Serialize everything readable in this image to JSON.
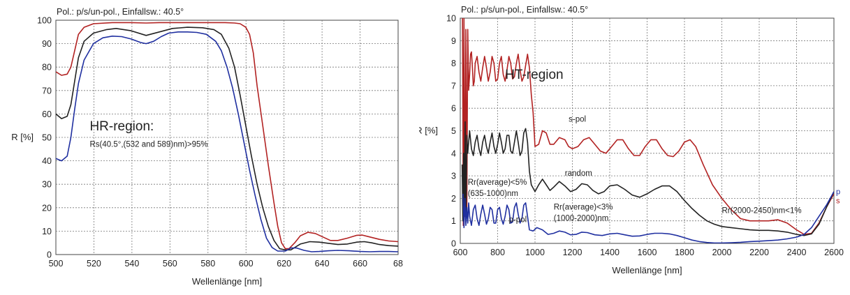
{
  "chart_data": [
    {
      "type": "line",
      "header": "Pol.: p/s/un-pol., Einfallsw.: 40.5°",
      "xlabel": "Wellenlänge [nm]",
      "ylabel": "R [%]",
      "xlim": [
        500,
        682
      ],
      "ylim": [
        0,
        100
      ],
      "xticks": [
        "500",
        "520",
        "540",
        "560",
        "580",
        "600",
        "620",
        "640",
        "660",
        "68"
      ],
      "yticks": [
        "0",
        "10",
        "20",
        "30",
        "40",
        "50",
        "60",
        "70",
        "80",
        "90",
        "100"
      ],
      "grid": true,
      "annotations": [
        {
          "text": "HR-region:",
          "x": 518,
          "y": 53
        },
        {
          "text": "Rs(40.5°,(532 and 589)nm)>95%",
          "x": 518,
          "y": 46
        }
      ],
      "series": [
        {
          "color": "#b22222",
          "x": [
            500,
            503,
            506,
            508,
            510,
            512,
            515,
            520,
            530,
            540,
            548,
            555,
            560,
            570,
            580,
            590,
            595,
            598,
            601,
            603,
            605,
            607,
            610,
            613,
            616,
            618,
            620,
            622,
            624,
            627,
            630,
            634,
            638,
            642,
            646,
            650,
            655,
            660,
            663,
            667,
            672,
            677,
            682
          ],
          "values": [
            78,
            76.5,
            77,
            80,
            87,
            94,
            97,
            98.5,
            99,
            99,
            98.8,
            99,
            99,
            99,
            99,
            99,
            98.8,
            98.5,
            97,
            94,
            86,
            72,
            55,
            38,
            22,
            12,
            5,
            2.5,
            2.5,
            5,
            8,
            9.5,
            9,
            7.5,
            6,
            6,
            7,
            8.2,
            8.3,
            7.5,
            6.5,
            5.8,
            5.5
          ]
        },
        {
          "color": "#222222",
          "x": [
            500,
            503,
            506,
            508,
            510,
            512,
            515,
            520,
            527,
            532,
            540,
            548,
            555,
            562,
            570,
            578,
            584,
            588,
            592,
            595,
            598,
            601,
            604,
            607,
            610,
            613,
            616,
            619,
            622,
            625,
            630,
            635,
            640,
            645,
            650,
            655,
            660,
            664,
            668,
            672,
            677,
            682
          ],
          "values": [
            60,
            58,
            59,
            64,
            74,
            84,
            91,
            94.5,
            96,
            96.5,
            95.5,
            93.5,
            95,
            96.5,
            97,
            96.8,
            96,
            94,
            88,
            80,
            68,
            55,
            42,
            30,
            20,
            12,
            6,
            2.5,
            2,
            2,
            4.5,
            5.5,
            5.3,
            4.8,
            4.3,
            4.5,
            5.3,
            5.5,
            5,
            4.3,
            3.8,
            3.6
          ]
        },
        {
          "color": "#1f2fa0",
          "x": [
            500,
            503,
            506,
            508,
            510,
            512,
            515,
            520,
            525,
            530,
            535,
            540,
            545,
            548,
            552,
            556,
            560,
            565,
            570,
            575,
            580,
            585,
            588,
            591,
            594,
            597,
            600,
            603,
            606,
            609,
            612,
            615,
            618,
            622,
            625,
            628,
            632,
            636,
            640,
            645,
            650,
            656,
            662,
            667,
            672,
            677,
            682
          ],
          "values": [
            41,
            40,
            42,
            50,
            62,
            73,
            83,
            90,
            92.5,
            93.2,
            93,
            92,
            90.5,
            90,
            91,
            93,
            94.5,
            95,
            95,
            94.8,
            94,
            91,
            87,
            80,
            71,
            60,
            48,
            36,
            25,
            15,
            7,
            3,
            1.5,
            1.5,
            2.8,
            2.8,
            1.8,
            1.2,
            1.3,
            1.6,
            1.8,
            1.6,
            1.3,
            1.2,
            1.3,
            1.3,
            1.2
          ]
        }
      ]
    },
    {
      "type": "line",
      "header": "Pol.: p/s/un-pol., Einfallsw.: 40.5°",
      "xlabel": "Wellenlänge [nm]",
      "ylabel": "R [%]",
      "xlim": [
        600,
        2600
      ],
      "ylim": [
        0,
        10
      ],
      "xticks": [
        "600",
        "800",
        "1000",
        "1200",
        "1400",
        "1600",
        "1800",
        "2000",
        "2200",
        "2400",
        "2600"
      ],
      "yticks": [
        "0",
        "1",
        "2",
        "3",
        "4",
        "5",
        "6",
        "7",
        "8",
        "9",
        "10"
      ],
      "grid": true,
      "annotations": [
        {
          "text": "HT-region",
          "x": 840,
          "y": 7.3,
          "size": "large"
        },
        {
          "text": "s-pol",
          "x": 1180,
          "y": 5.4
        },
        {
          "text": "random",
          "x": 1160,
          "y": 3.0
        },
        {
          "text": "Rr(average)<5%",
          "x": 640,
          "y": 2.6
        },
        {
          "text": "(635-1000)nm",
          "x": 640,
          "y": 2.1
        },
        {
          "text": "Rr(average)<3%",
          "x": 1100,
          "y": 1.5
        },
        {
          "text": "(1000-2000)nm",
          "x": 1100,
          "y": 1.0
        },
        {
          "text": "p-pol",
          "x": 860,
          "y": 0.95
        },
        {
          "text": "Rr(2000-2450)nm<1%",
          "x": 2000,
          "y": 1.35
        }
      ],
      "series": [
        {
          "name": "s",
          "color": "#b22222",
          "label_color": "#b22222",
          "x": [
            612,
            616,
            620,
            625,
            630,
            635,
            640,
            645,
            650,
            655,
            660,
            665,
            670,
            675,
            680,
            690,
            700,
            710,
            720,
            730,
            740,
            750,
            760,
            770,
            780,
            790,
            800,
            810,
            820,
            830,
            840,
            850,
            860,
            870,
            880,
            890,
            900,
            910,
            920,
            930,
            940,
            950,
            960,
            970,
            980,
            990,
            1000,
            1020,
            1040,
            1060,
            1080,
            1100,
            1130,
            1160,
            1180,
            1200,
            1230,
            1260,
            1290,
            1320,
            1350,
            1380,
            1410,
            1440,
            1470,
            1500,
            1530,
            1560,
            1590,
            1620,
            1650,
            1680,
            1710,
            1740,
            1770,
            1800,
            1830,
            1860,
            1900,
            1950,
            2000,
            2050,
            2100,
            2150,
            2200,
            2250,
            2300,
            2350,
            2400,
            2440,
            2480,
            2520,
            2560,
            2600
          ],
          "values": [
            10,
            0.8,
            10,
            1.2,
            9.5,
            1.5,
            9.5,
            6.8,
            7.5,
            8.4,
            8.5,
            7.8,
            7,
            7.2,
            8.0,
            8.3,
            7.6,
            7.2,
            7.8,
            8.3,
            7.8,
            7.2,
            7.6,
            8.3,
            8.0,
            7.2,
            7.3,
            8.0,
            8.3,
            7.5,
            7.2,
            7.7,
            8.3,
            8.0,
            7.3,
            7.4,
            8.0,
            8.4,
            7.7,
            7.2,
            7.4,
            7.9,
            8.4,
            7.8,
            6.6,
            5.8,
            4.3,
            4.4,
            5.0,
            4.9,
            4.4,
            4.4,
            4.7,
            4.6,
            4.3,
            4.2,
            4.3,
            4.6,
            4.7,
            4.4,
            4.1,
            4.0,
            4.3,
            4.6,
            4.6,
            4.2,
            3.9,
            3.9,
            4.3,
            4.6,
            4.6,
            4.2,
            3.9,
            3.85,
            4.1,
            4.5,
            4.6,
            4.3,
            3.5,
            2.6,
            2.0,
            1.5,
            1.1,
            1.0,
            1.0,
            1.0,
            1.05,
            0.9,
            0.6,
            0.4,
            0.45,
            0.9,
            1.6,
            2.2
          ]
        },
        {
          "name": "random",
          "color": "#222222",
          "x": [
            610,
            614,
            618,
            622,
            626,
            630,
            635,
            640,
            645,
            650,
            660,
            670,
            680,
            690,
            700,
            710,
            720,
            730,
            740,
            750,
            760,
            770,
            780,
            790,
            800,
            810,
            820,
            830,
            840,
            850,
            860,
            870,
            880,
            890,
            900,
            910,
            920,
            930,
            940,
            950,
            960,
            970,
            980,
            1000,
            1020,
            1040,
            1060,
            1080,
            1100,
            1130,
            1160,
            1190,
            1220,
            1250,
            1280,
            1310,
            1340,
            1370,
            1400,
            1440,
            1480,
            1520,
            1560,
            1600,
            1640,
            1680,
            1720,
            1760,
            1800,
            1840,
            1880,
            1920,
            1960,
            2000,
            2050,
            2100,
            2150,
            2200,
            2250,
            2300,
            2350,
            2400,
            2440,
            2480,
            2520,
            2560,
            2600
          ],
          "values": [
            3.5,
            1.0,
            4.0,
            1.5,
            5.4,
            1.0,
            4.8,
            4.0,
            4.5,
            5.0,
            4.2,
            3.9,
            4.5,
            4.8,
            4.2,
            3.9,
            4.5,
            4.8,
            4.3,
            4.0,
            4.5,
            4.9,
            4.3,
            4.0,
            4.4,
            4.9,
            4.5,
            4.0,
            4.2,
            4.8,
            4.8,
            4.1,
            4.0,
            4.5,
            5.0,
            4.5,
            3.9,
            4.1,
            4.9,
            5.1,
            4.5,
            3.2,
            2.6,
            2.3,
            2.6,
            2.85,
            2.6,
            2.35,
            2.5,
            2.75,
            2.55,
            2.3,
            2.4,
            2.65,
            2.6,
            2.35,
            2.2,
            2.3,
            2.55,
            2.6,
            2.4,
            2.15,
            2.05,
            2.2,
            2.4,
            2.55,
            2.55,
            2.3,
            1.9,
            1.55,
            1.25,
            1.0,
            0.85,
            0.75,
            0.7,
            0.65,
            0.6,
            0.58,
            0.58,
            0.55,
            0.5,
            0.4,
            0.35,
            0.42,
            0.85,
            1.6,
            2.3
          ]
        },
        {
          "name": "p",
          "color": "#1f2fa0",
          "label_color": "#1f2fa0",
          "x": [
            615,
            620,
            625,
            630,
            635,
            640,
            645,
            650,
            660,
            670,
            680,
            690,
            700,
            710,
            720,
            730,
            740,
            750,
            760,
            770,
            780,
            790,
            800,
            810,
            820,
            830,
            840,
            850,
            860,
            870,
            880,
            890,
            900,
            910,
            920,
            930,
            940,
            950,
            960,
            970,
            990,
            1010,
            1040,
            1070,
            1100,
            1130,
            1160,
            1190,
            1220,
            1250,
            1280,
            1320,
            1360,
            1400,
            1440,
            1480,
            1520,
            1560,
            1600,
            1640,
            1680,
            1720,
            1760,
            1800,
            1840,
            1880,
            1920,
            1960,
            2000,
            2050,
            2100,
            2150,
            2200,
            2250,
            2300,
            2350,
            2400,
            2440,
            2480,
            2520,
            2560,
            2600
          ],
          "values": [
            2.2,
            0.7,
            2.0,
            0.8,
            1.6,
            0.9,
            1.8,
            1.2,
            0.8,
            1.5,
            1.7,
            1.1,
            0.8,
            1.3,
            1.7,
            1.3,
            0.85,
            1.1,
            1.6,
            1.5,
            0.9,
            0.9,
            1.5,
            1.6,
            1.1,
            0.85,
            1.2,
            1.7,
            1.5,
            0.9,
            0.95,
            1.6,
            1.8,
            1.3,
            0.9,
            1.1,
            1.7,
            1.8,
            1.2,
            0.6,
            0.55,
            0.7,
            0.6,
            0.4,
            0.45,
            0.55,
            0.5,
            0.38,
            0.4,
            0.5,
            0.48,
            0.38,
            0.35,
            0.42,
            0.45,
            0.38,
            0.32,
            0.33,
            0.4,
            0.45,
            0.45,
            0.42,
            0.35,
            0.25,
            0.15,
            0.08,
            0.04,
            0.02,
            0.02,
            0.03,
            0.05,
            0.08,
            0.1,
            0.12,
            0.15,
            0.2,
            0.28,
            0.4,
            0.7,
            1.2,
            1.7,
            2.3
          ]
        }
      ]
    }
  ]
}
